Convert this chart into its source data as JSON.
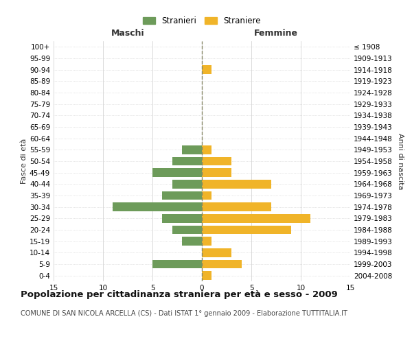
{
  "age_groups": [
    "0-4",
    "5-9",
    "10-14",
    "15-19",
    "20-24",
    "25-29",
    "30-34",
    "35-39",
    "40-44",
    "45-49",
    "50-54",
    "55-59",
    "60-64",
    "65-69",
    "70-74",
    "75-79",
    "80-84",
    "85-89",
    "90-94",
    "95-99",
    "100+"
  ],
  "birth_years": [
    "2004-2008",
    "1999-2003",
    "1994-1998",
    "1989-1993",
    "1984-1988",
    "1979-1983",
    "1974-1978",
    "1969-1973",
    "1964-1968",
    "1959-1963",
    "1954-1958",
    "1949-1953",
    "1944-1948",
    "1939-1943",
    "1934-1938",
    "1929-1933",
    "1924-1928",
    "1919-1923",
    "1914-1918",
    "1909-1913",
    "≤ 1908"
  ],
  "maschi": [
    0,
    5,
    0,
    2,
    3,
    4,
    9,
    4,
    3,
    5,
    3,
    2,
    0,
    0,
    0,
    0,
    0,
    0,
    0,
    0,
    0
  ],
  "femmine": [
    1,
    4,
    3,
    1,
    9,
    11,
    7,
    1,
    7,
    3,
    3,
    1,
    0,
    0,
    0,
    0,
    0,
    0,
    1,
    0,
    0
  ],
  "maschi_color": "#6d9b5a",
  "femmine_color": "#f0b429",
  "xlim": 15,
  "xlabel_left": "Maschi",
  "xlabel_right": "Femmine",
  "ylabel_left": "Fasce di età",
  "ylabel_right": "Anni di nascita",
  "legend_stranieri": "Stranieri",
  "legend_straniere": "Straniere",
  "title": "Popolazione per cittadinanza straniera per età e sesso - 2009",
  "subtitle": "COMUNE DI SAN NICOLA ARCELLA (CS) - Dati ISTAT 1° gennaio 2009 - Elaborazione TUTTITALIA.IT",
  "background_color": "#ffffff",
  "grid_color": "#cccccc",
  "title_fontsize": 9.5,
  "subtitle_fontsize": 7.0
}
